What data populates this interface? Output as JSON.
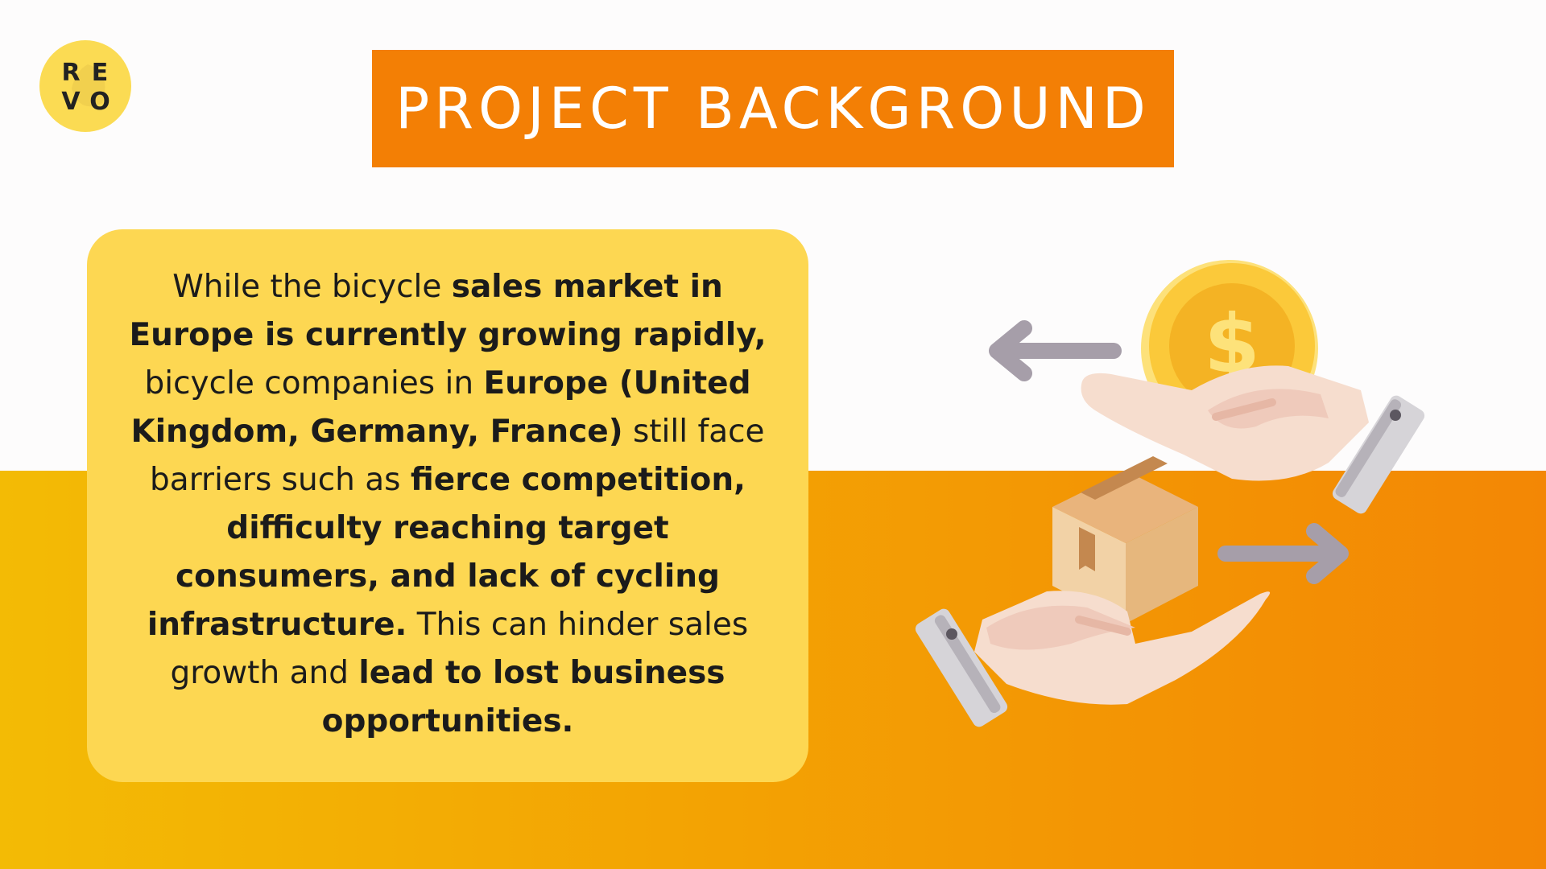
{
  "logo": {
    "letters": [
      "R",
      "E",
      "V",
      "O"
    ]
  },
  "title": "PROJECT BACKGROUND",
  "body_segments": [
    {
      "text": "While the bicycle ",
      "bold": false
    },
    {
      "text": "sales market in Europe is currently growing rapidly,",
      "bold": true
    },
    {
      "text": " bicycle companies in ",
      "bold": false
    },
    {
      "text": "Europe (United Kingdom, Germany, France)",
      "bold": true
    },
    {
      "text": " still face barriers such as ",
      "bold": false
    },
    {
      "text": "fierce competition, difficulty reaching target consumers, and lack of cycling infrastructure.",
      "bold": true
    },
    {
      "text": " This can hinder sales growth and ",
      "bold": false
    },
    {
      "text": "lead to lost business opportunities.",
      "bold": true
    }
  ],
  "illustration": {
    "icons": [
      "left-arrow-icon",
      "dollar-coin-icon",
      "hand-icon",
      "package-box-icon",
      "right-arrow-icon"
    ],
    "colors": {
      "coin": "#fbc93a",
      "arrow": "#a69ea9",
      "skin": "#f6ddce",
      "box": "#e5b77f",
      "cuff": "#d6d4d8"
    }
  },
  "colors": {
    "accent": "#f37f05",
    "card": "#fdd752",
    "logo": "#fbdb53"
  }
}
